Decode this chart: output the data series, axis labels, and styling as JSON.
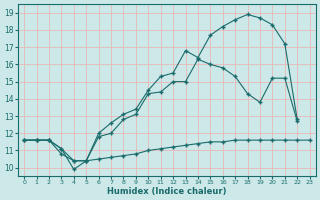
{
  "xlabel": "Humidex (Indice chaleur)",
  "xlim": [
    -0.5,
    23.5
  ],
  "ylim": [
    9.5,
    19.5
  ],
  "xticks": [
    0,
    1,
    2,
    3,
    4,
    5,
    6,
    7,
    8,
    9,
    10,
    11,
    12,
    13,
    14,
    15,
    16,
    17,
    18,
    19,
    20,
    21,
    22,
    23
  ],
  "yticks": [
    10,
    11,
    12,
    13,
    14,
    15,
    16,
    17,
    18,
    19
  ],
  "background_color": "#cce8e8",
  "grid_color": "#e8b8b8",
  "line_color": "#1a6b6b",
  "line1_x": [
    0,
    1,
    2,
    3,
    4,
    5,
    6,
    7,
    8,
    9,
    10,
    11,
    12,
    13,
    14,
    15,
    16,
    17,
    18,
    19,
    20,
    21,
    22,
    23
  ],
  "line1_y": [
    11.6,
    11.6,
    11.6,
    10.8,
    10.4,
    10.4,
    10.5,
    10.6,
    10.7,
    10.8,
    11.0,
    11.1,
    11.2,
    11.3,
    11.4,
    11.5,
    11.5,
    11.6,
    11.6,
    11.6,
    11.6,
    11.6,
    11.6,
    11.6
  ],
  "line2_x": [
    0,
    1,
    2,
    3,
    4,
    5,
    6,
    7,
    8,
    9,
    10,
    11,
    12,
    13,
    14,
    15,
    16,
    17,
    18,
    19,
    20,
    21,
    22
  ],
  "line2_y": [
    11.6,
    11.6,
    11.6,
    11.1,
    10.4,
    10.4,
    11.8,
    12.0,
    12.8,
    13.1,
    14.3,
    14.4,
    15.0,
    15.0,
    16.3,
    16.0,
    15.8,
    15.3,
    14.3,
    13.8,
    15.2,
    15.2,
    12.7
  ],
  "line3_x": [
    0,
    1,
    2,
    3,
    4,
    5,
    6,
    7,
    8,
    9,
    10,
    11,
    12,
    13,
    14,
    15,
    16,
    17,
    18,
    19,
    20,
    21,
    22
  ],
  "line3_y": [
    11.6,
    11.6,
    11.6,
    11.1,
    9.9,
    10.4,
    12.0,
    12.6,
    13.1,
    13.4,
    14.5,
    15.3,
    15.5,
    16.8,
    16.4,
    17.7,
    18.2,
    18.6,
    18.9,
    18.7,
    18.3,
    17.2,
    12.8
  ]
}
